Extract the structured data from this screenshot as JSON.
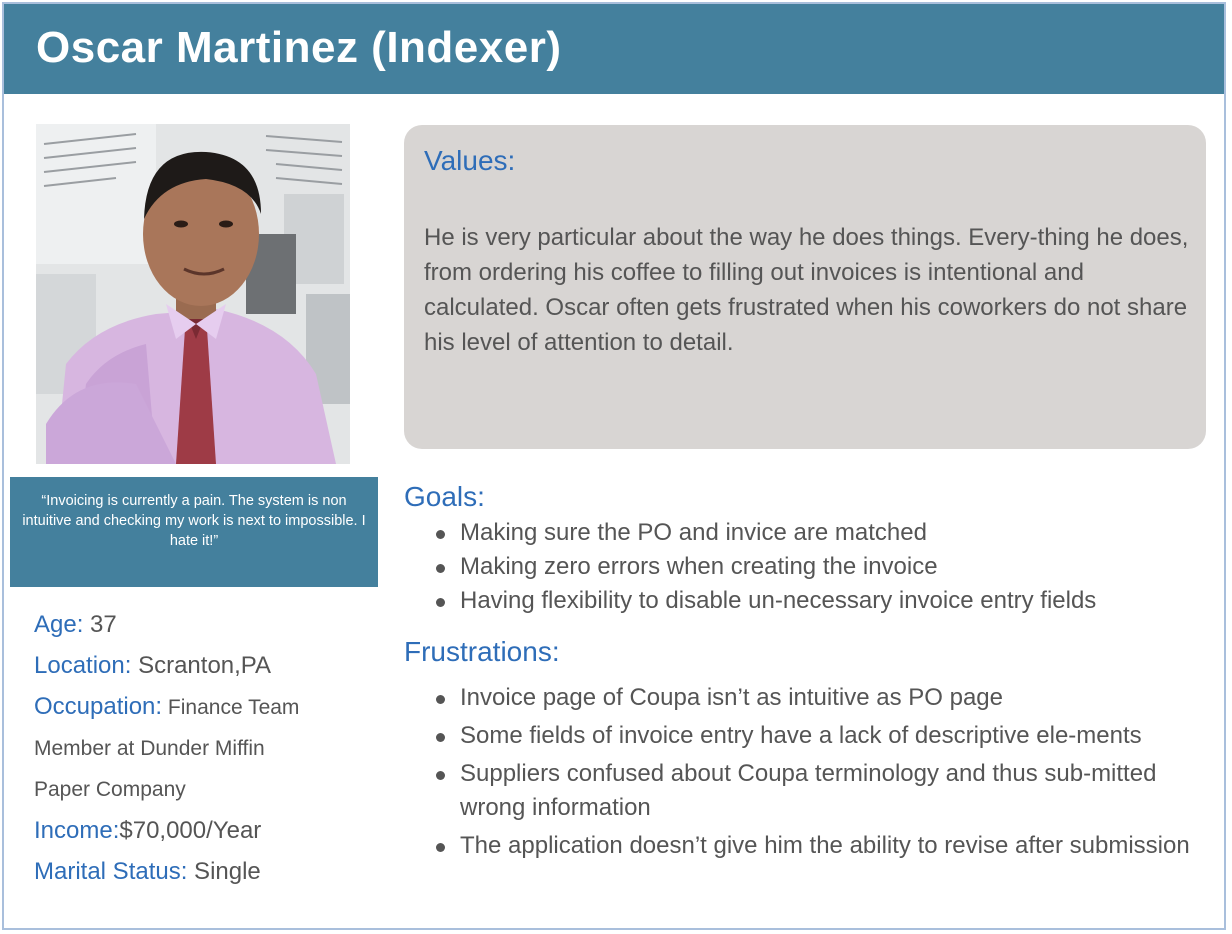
{
  "persona": {
    "title": "Oscar Martinez (Indexer)",
    "quote": "“Invoicing is currently a pain.  The system is non intuitive and checking my work is next to impossible.  I hate it!”",
    "details": {
      "age": {
        "label": "Age:",
        "value": " 37"
      },
      "location": {
        "label": "Location:",
        "value": " Scranton,PA"
      },
      "occupation": {
        "label": "Occupation:",
        "line1": "  Finance Team",
        "line2": "Member at Dunder Miffin",
        "line3": "Paper Company"
      },
      "income": {
        "label": "Income:",
        "value": "$70,000/Year"
      },
      "marital": {
        "label": "Marital Status:",
        "value": " Single"
      }
    },
    "values": {
      "heading": "Values:",
      "text": "He is very particular about the way he does things.  Every-thing he does, from ordering his coffee to filling out invoices is intentional and calculated.  Oscar often gets frustrated when his coworkers do not share his level of attention to detail."
    },
    "goals": {
      "heading": "Goals:",
      "items": [
        "Making sure  the PO and invice are matched",
        "Making zero errors when creating the invoice",
        "Having flexibility to disable un-necessary invoice entry fields"
      ]
    },
    "frustrations": {
      "heading": "Frustrations:",
      "items": [
        "Invoice page of Coupa isn’t as intuitive as PO page",
        "Some fields of invoice entry have a lack of descriptive ele-ments",
        "Suppliers confused about Coupa terminology and thus sub-mitted wrong information",
        "The application doesn’t give him the ability to revise after submission"
      ]
    }
  },
  "colors": {
    "header": "#44809d",
    "accent_text": "#2e6db8",
    "values_bg": "#d8d5d3",
    "body_text": "#555555"
  }
}
